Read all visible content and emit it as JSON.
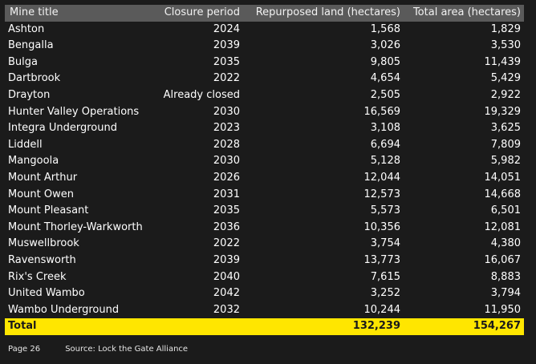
{
  "table": {
    "headers": [
      "Mine title",
      "Closure period",
      "Repurposed land (hectares)",
      "Total area (hectares)"
    ],
    "rows": [
      [
        "Ashton",
        "2024",
        "1,568",
        "1,829"
      ],
      [
        "Bengalla",
        "2039",
        "3,026",
        "3,530"
      ],
      [
        "Bulga",
        "2035",
        "9,805",
        "11,439"
      ],
      [
        "Dartbrook",
        "2022",
        "4,654",
        "5,429"
      ],
      [
        "Drayton",
        "Already closed",
        "2,505",
        "2,922"
      ],
      [
        "Hunter Valley Operations",
        "2030",
        "16,569",
        "19,329"
      ],
      [
        "Integra Underground",
        "2023",
        "3,108",
        "3,625"
      ],
      [
        "Liddell",
        "2028",
        "6,694",
        "7,809"
      ],
      [
        "Mangoola",
        "2030",
        "5,128",
        "5,982"
      ],
      [
        "Mount Arthur",
        "2026",
        "12,044",
        "14,051"
      ],
      [
        "Mount Owen",
        "2031",
        "12,573",
        "14,668"
      ],
      [
        "Mount Pleasant",
        "2035",
        "5,573",
        "6,501"
      ],
      [
        "Mount Thorley-Warkworth",
        "2036",
        "10,356",
        "12,081"
      ],
      [
        "Muswellbrook",
        "2022",
        "3,754",
        "4,380"
      ],
      [
        "Ravensworth",
        "2039",
        "13,773",
        "16,067"
      ],
      [
        "Rix's Creek",
        "2040",
        "7,615",
        "8,883"
      ],
      [
        "United Wambo",
        "2042",
        "3,252",
        "3,794"
      ],
      [
        "Wambo Underground",
        "2032",
        "10,244",
        "11,950"
      ]
    ],
    "total": {
      "label": "Total",
      "closure": "",
      "repurposed": "132,239",
      "area": "154,267"
    }
  },
  "footer": {
    "page": "Page 26",
    "source": "Source: Lock the Gate Alliance"
  },
  "colors": {
    "background": "#1b1b1b",
    "header": "#5a5a5a",
    "total_highlight": "#ffe600"
  }
}
